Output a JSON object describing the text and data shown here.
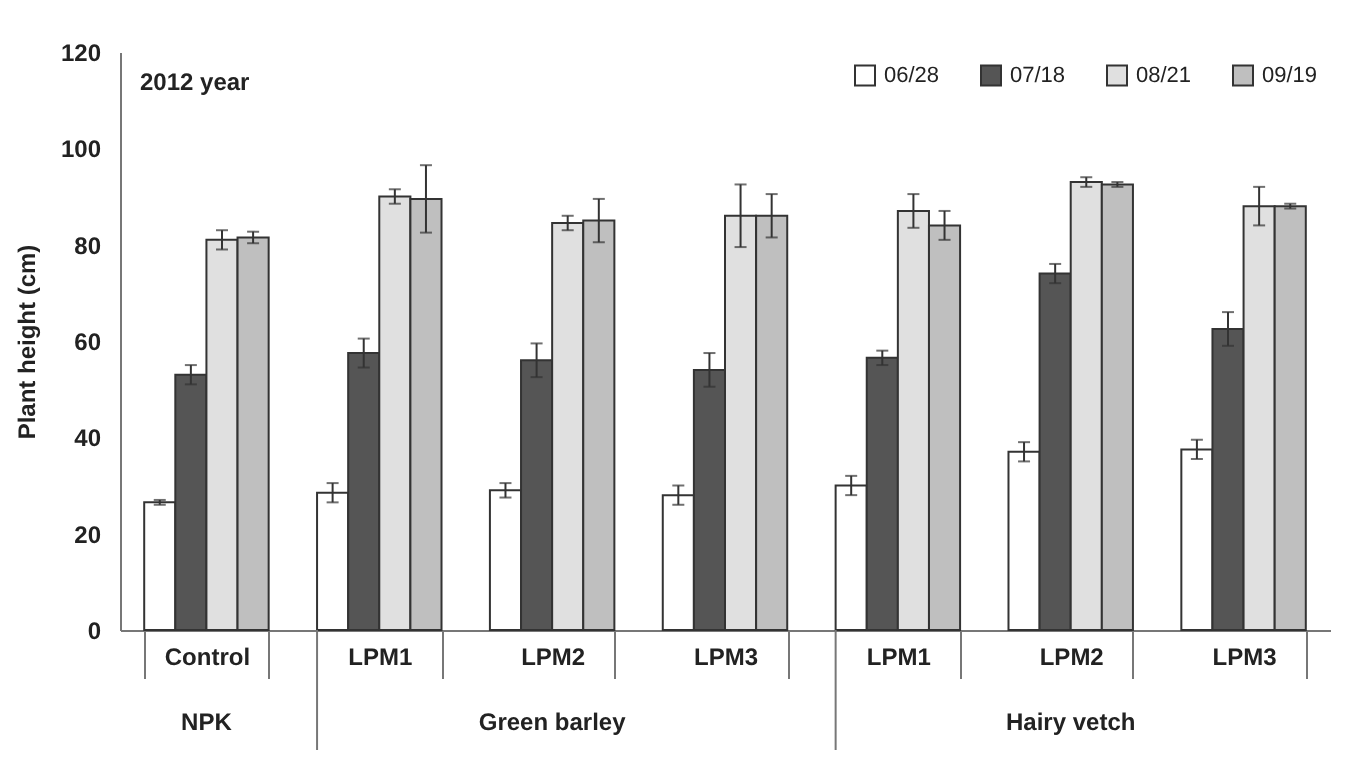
{
  "chart_data": {
    "type": "bar",
    "ylabel": "Plant height (cm)",
    "categories": [
      "Control",
      "LPM1",
      "LPM2",
      "LPM3",
      "LPM1",
      "LPM2",
      "LPM3"
    ],
    "series": [
      {
        "name": "06/28",
        "color": "#ffffff",
        "values": [
          26.5,
          28.5,
          29,
          28,
          30,
          37,
          37.5
        ],
        "errors": [
          0.5,
          2,
          1.5,
          2,
          2,
          2,
          2
        ]
      },
      {
        "name": "07/18",
        "color": "#555555",
        "values": [
          53,
          57.5,
          56,
          54,
          56.5,
          74,
          62.5
        ],
        "errors": [
          2,
          3,
          3.5,
          3.5,
          1.5,
          2,
          3.5
        ]
      },
      {
        "name": "08/21",
        "color": "#e0e0e0",
        "values": [
          81,
          90,
          84.5,
          86,
          87,
          93,
          88
        ],
        "errors": [
          2,
          1.5,
          1.5,
          6.5,
          3.5,
          1,
          4
        ]
      },
      {
        "name": "09/19",
        "color": "#bfbfbf",
        "values": [
          81.5,
          89.5,
          85,
          86,
          84,
          92.5,
          88
        ],
        "errors": [
          1.2,
          7,
          4.5,
          4.5,
          3,
          0.5,
          0.5
        ]
      }
    ],
    "ylim": [
      0,
      120
    ],
    "yticks": [
      0,
      20,
      40,
      60,
      80,
      100,
      120
    ],
    "annotations": [
      "2012 year",
      "NPK",
      "Green barley",
      "Hairy vetch"
    ],
    "legend": "top right",
    "grid": false
  }
}
